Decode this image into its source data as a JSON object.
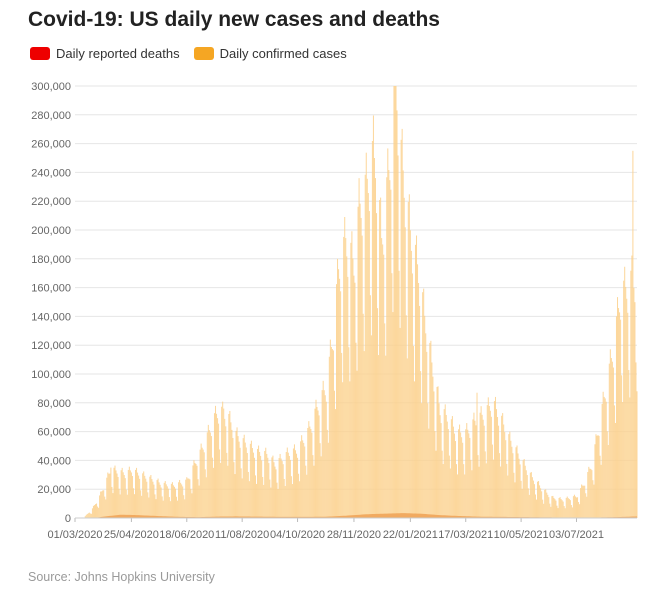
{
  "header": {
    "title": "Covid-19: US daily new cases and deaths"
  },
  "legend": [
    {
      "label": "Daily reported deaths",
      "color": "#ee0000"
    },
    {
      "label": "Daily confirmed cases",
      "color": "#f5a623"
    }
  ],
  "footer": {
    "source": "Source: Johns Hopkins University"
  },
  "chart_data": {
    "type": "bar",
    "title": "Covid-19: US daily new cases and deaths",
    "xlabel": "",
    "ylabel": "",
    "ylim": [
      0,
      300000
    ],
    "grid": true,
    "legend_position": "top-left",
    "x_range": [
      "2020-03-01",
      "2021-08-31"
    ],
    "y_ticks": [
      0,
      20000,
      40000,
      60000,
      80000,
      100000,
      120000,
      140000,
      160000,
      180000,
      200000,
      220000,
      240000,
      260000,
      280000,
      300000
    ],
    "y_tick_labels": [
      "0",
      "20,000",
      "40,000",
      "60,000",
      "80,000",
      "100,000",
      "120,000",
      "140,000",
      "160,000",
      "180,000",
      "200,000",
      "220,000",
      "240,000",
      "260,000",
      "280,000",
      "300,000"
    ],
    "x_ticks": [
      "2020-03-01",
      "2020-04-25",
      "2020-06-18",
      "2020-08-11",
      "2020-10-04",
      "2020-11-28",
      "2021-01-22",
      "2021-03-17",
      "2021-05-10",
      "2021-07-03"
    ],
    "x_tick_labels": [
      "01/03/2020",
      "25/04/2020",
      "18/06/2020",
      "11/08/2020",
      "04/10/2020",
      "28/11/2020",
      "22/01/2021",
      "17/03/2021",
      "10/05/2021",
      "03/07/2021"
    ],
    "series": [
      {
        "name": "Daily confirmed cases",
        "color": "#f5a623",
        "points": [
          [
            "2020-03-01",
            0
          ],
          [
            "2020-03-10",
            500
          ],
          [
            "2020-03-18",
            6000
          ],
          [
            "2020-03-25",
            14000
          ],
          [
            "2020-04-01",
            25000
          ],
          [
            "2020-04-05",
            32000
          ],
          [
            "2020-04-12",
            30000
          ],
          [
            "2020-04-20",
            29000
          ],
          [
            "2020-04-25",
            31000
          ],
          [
            "2020-05-05",
            28000
          ],
          [
            "2020-05-15",
            25000
          ],
          [
            "2020-05-25",
            22000
          ],
          [
            "2020-06-05",
            21000
          ],
          [
            "2020-06-18",
            24000
          ],
          [
            "2020-06-25",
            34000
          ],
          [
            "2020-07-05",
            48000
          ],
          [
            "2020-07-15",
            65000
          ],
          [
            "2020-07-20",
            70000
          ],
          [
            "2020-07-28",
            66000
          ],
          [
            "2020-08-05",
            54000
          ],
          [
            "2020-08-11",
            50000
          ],
          [
            "2020-08-25",
            43000
          ],
          [
            "2020-09-05",
            41000
          ],
          [
            "2020-09-12",
            35000
          ],
          [
            "2020-09-25",
            42000
          ],
          [
            "2020-10-04",
            44000
          ],
          [
            "2020-10-15",
            57000
          ],
          [
            "2020-10-25",
            75000
          ],
          [
            "2020-11-01",
            85000
          ],
          [
            "2020-11-07",
            115000
          ],
          [
            "2020-11-13",
            160000
          ],
          [
            "2020-11-20",
            180000
          ],
          [
            "2020-11-28",
            165000
          ],
          [
            "2020-12-03",
            200000
          ],
          [
            "2020-12-10",
            215000
          ],
          [
            "2020-12-18",
            240000
          ],
          [
            "2020-12-25",
            180000
          ],
          [
            "2021-01-02",
            230000
          ],
          [
            "2021-01-08",
            290000
          ],
          [
            "2021-01-12",
            240000
          ],
          [
            "2021-01-22",
            185000
          ],
          [
            "2021-01-30",
            160000
          ],
          [
            "2021-02-05",
            130000
          ],
          [
            "2021-02-12",
            100000
          ],
          [
            "2021-02-20",
            70000
          ],
          [
            "2021-02-28",
            65000
          ],
          [
            "2021-03-08",
            55000
          ],
          [
            "2021-03-17",
            55000
          ],
          [
            "2021-03-25",
            62000
          ],
          [
            "2021-04-05",
            68000
          ],
          [
            "2021-04-12",
            75000
          ],
          [
            "2021-04-20",
            65000
          ],
          [
            "2021-04-28",
            52000
          ],
          [
            "2021-05-10",
            38000
          ],
          [
            "2021-05-20",
            27000
          ],
          [
            "2021-06-01",
            18000
          ],
          [
            "2021-06-10",
            13000
          ],
          [
            "2021-06-20",
            12000
          ],
          [
            "2021-07-03",
            14000
          ],
          [
            "2021-07-10",
            22000
          ],
          [
            "2021-07-18",
            35000
          ],
          [
            "2021-07-25",
            60000
          ],
          [
            "2021-08-01",
            85000
          ],
          [
            "2021-08-08",
            110000
          ],
          [
            "2021-08-15",
            145000
          ],
          [
            "2021-08-22",
            150000
          ],
          [
            "2021-08-31",
            160000
          ]
        ],
        "peaks": [
          [
            "2020-04-05",
            35000
          ],
          [
            "2020-07-24",
            76000
          ],
          [
            "2020-12-18",
            250000
          ],
          [
            "2021-01-08",
            300000
          ],
          [
            "2021-03-28",
            87000
          ],
          [
            "2021-08-27",
            255000
          ]
        ]
      },
      {
        "name": "Daily reported deaths",
        "color": "#ee0000",
        "points": [
          [
            "2020-03-01",
            0
          ],
          [
            "2020-03-20",
            100
          ],
          [
            "2020-04-01",
            1200
          ],
          [
            "2020-04-15",
            2300
          ],
          [
            "2020-05-01",
            2000
          ],
          [
            "2020-05-20",
            1400
          ],
          [
            "2020-06-10",
            800
          ],
          [
            "2020-06-30",
            600
          ],
          [
            "2020-07-20",
            1000
          ],
          [
            "2020-08-05",
            1100
          ],
          [
            "2020-08-25",
            950
          ],
          [
            "2020-09-15",
            800
          ],
          [
            "2020-10-10",
            750
          ],
          [
            "2020-11-01",
            900
          ],
          [
            "2020-11-20",
            1600
          ],
          [
            "2020-12-10",
            2600
          ],
          [
            "2021-01-05",
            3200
          ],
          [
            "2021-01-15",
            3400
          ],
          [
            "2021-02-01",
            3000
          ],
          [
            "2021-02-20",
            2000
          ],
          [
            "2021-03-10",
            1400
          ],
          [
            "2021-04-01",
            900
          ],
          [
            "2021-05-01",
            700
          ],
          [
            "2021-06-01",
            450
          ],
          [
            "2021-07-01",
            250
          ],
          [
            "2021-07-20",
            300
          ],
          [
            "2021-08-10",
            600
          ],
          [
            "2021-08-31",
            1100
          ]
        ]
      }
    ]
  }
}
